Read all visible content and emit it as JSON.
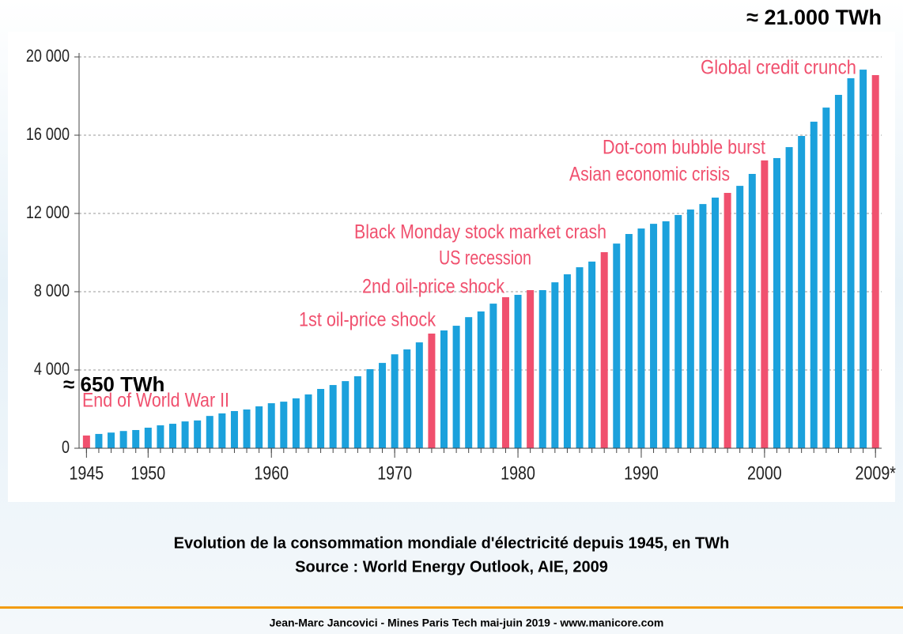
{
  "chart_data": {
    "type": "bar",
    "top_note": "≈ 21.000 TWh",
    "start_note": "≈ 650 TWh",
    "caption": "Evolution de la consommation mondiale d'électricité depuis 1945, en TWh",
    "source": "Source : World Energy Outlook, AIE, 2009",
    "footer": "Jean-Marc Jancovici - Mines Paris Tech mai-juin 2019 - www.manicore.com",
    "x": [
      1945,
      1946,
      1947,
      1948,
      1949,
      1950,
      1951,
      1952,
      1953,
      1954,
      1955,
      1956,
      1957,
      1958,
      1959,
      1960,
      1961,
      1962,
      1963,
      1964,
      1965,
      1966,
      1967,
      1968,
      1969,
      1970,
      1971,
      1972,
      1973,
      1974,
      1975,
      1976,
      1977,
      1978,
      1979,
      1980,
      1981,
      1982,
      1983,
      1984,
      1985,
      1986,
      1987,
      1988,
      1989,
      1990,
      1991,
      1992,
      1993,
      1994,
      1995,
      1996,
      1997,
      1998,
      1999,
      2000,
      2001,
      2002,
      2003,
      2004,
      2005,
      2006,
      2007,
      2008,
      2009
    ],
    "values": [
      650,
      730,
      800,
      880,
      930,
      1050,
      1170,
      1250,
      1370,
      1420,
      1650,
      1780,
      1900,
      1980,
      2140,
      2300,
      2380,
      2550,
      2750,
      3030,
      3230,
      3430,
      3680,
      4040,
      4360,
      4800,
      5050,
      5410,
      5860,
      6020,
      6260,
      6700,
      6990,
      7390,
      7720,
      7840,
      8080,
      8080,
      8480,
      8890,
      9250,
      9540,
      10020,
      10460,
      10950,
      11230,
      11470,
      11600,
      11920,
      12200,
      12480,
      12810,
      13050,
      13410,
      14020,
      14710,
      14830,
      15390,
      15960,
      16690,
      17410,
      18060,
      18910,
      19350,
      19070
    ],
    "colors": [
      "#f0506e",
      "#1ba1dc",
      "#1ba1dc",
      "#1ba1dc",
      "#1ba1dc",
      "#1ba1dc",
      "#1ba1dc",
      "#1ba1dc",
      "#1ba1dc",
      "#1ba1dc",
      "#1ba1dc",
      "#1ba1dc",
      "#1ba1dc",
      "#1ba1dc",
      "#1ba1dc",
      "#1ba1dc",
      "#1ba1dc",
      "#1ba1dc",
      "#1ba1dc",
      "#1ba1dc",
      "#1ba1dc",
      "#1ba1dc",
      "#1ba1dc",
      "#1ba1dc",
      "#1ba1dc",
      "#1ba1dc",
      "#1ba1dc",
      "#1ba1dc",
      "#f0506e",
      "#1ba1dc",
      "#1ba1dc",
      "#1ba1dc",
      "#1ba1dc",
      "#1ba1dc",
      "#f0506e",
      "#1ba1dc",
      "#f0506e",
      "#1ba1dc",
      "#1ba1dc",
      "#1ba1dc",
      "#1ba1dc",
      "#1ba1dc",
      "#f0506e",
      "#1ba1dc",
      "#1ba1dc",
      "#1ba1dc",
      "#1ba1dc",
      "#1ba1dc",
      "#1ba1dc",
      "#1ba1dc",
      "#1ba1dc",
      "#1ba1dc",
      "#f0506e",
      "#1ba1dc",
      "#1ba1dc",
      "#f0506e",
      "#1ba1dc",
      "#1ba1dc",
      "#1ba1dc",
      "#1ba1dc",
      "#1ba1dc",
      "#1ba1dc",
      "#1ba1dc",
      "#1ba1dc",
      "#f0506e"
    ],
    "annotations": [
      "Global credit crunch",
      "Dot-com bubble burst",
      "Asian economic crisis",
      "Black Monday stock market crash",
      "US recession",
      "2nd oil-price shock",
      "1st oil-price shock",
      "End of World War II"
    ],
    "annotation_color": "#f0506e",
    "xlim": [
      1944.4,
      2009.5
    ],
    "xticks": [
      1945,
      1950,
      1960,
      1970,
      1980,
      1990,
      2000,
      {
        "value": 2009,
        "label": "2009*"
      }
    ],
    "ylim": [
      0,
      20000
    ],
    "yticks": [
      0,
      {
        "value": 4000,
        "label": "4 000"
      },
      {
        "value": 8000,
        "label": "8 000"
      },
      {
        "value": 12000,
        "label": "12 000"
      },
      {
        "value": 16000,
        "label": "16 000"
      },
      {
        "value": 20000,
        "label": "20 000"
      }
    ],
    "grid": true
  }
}
